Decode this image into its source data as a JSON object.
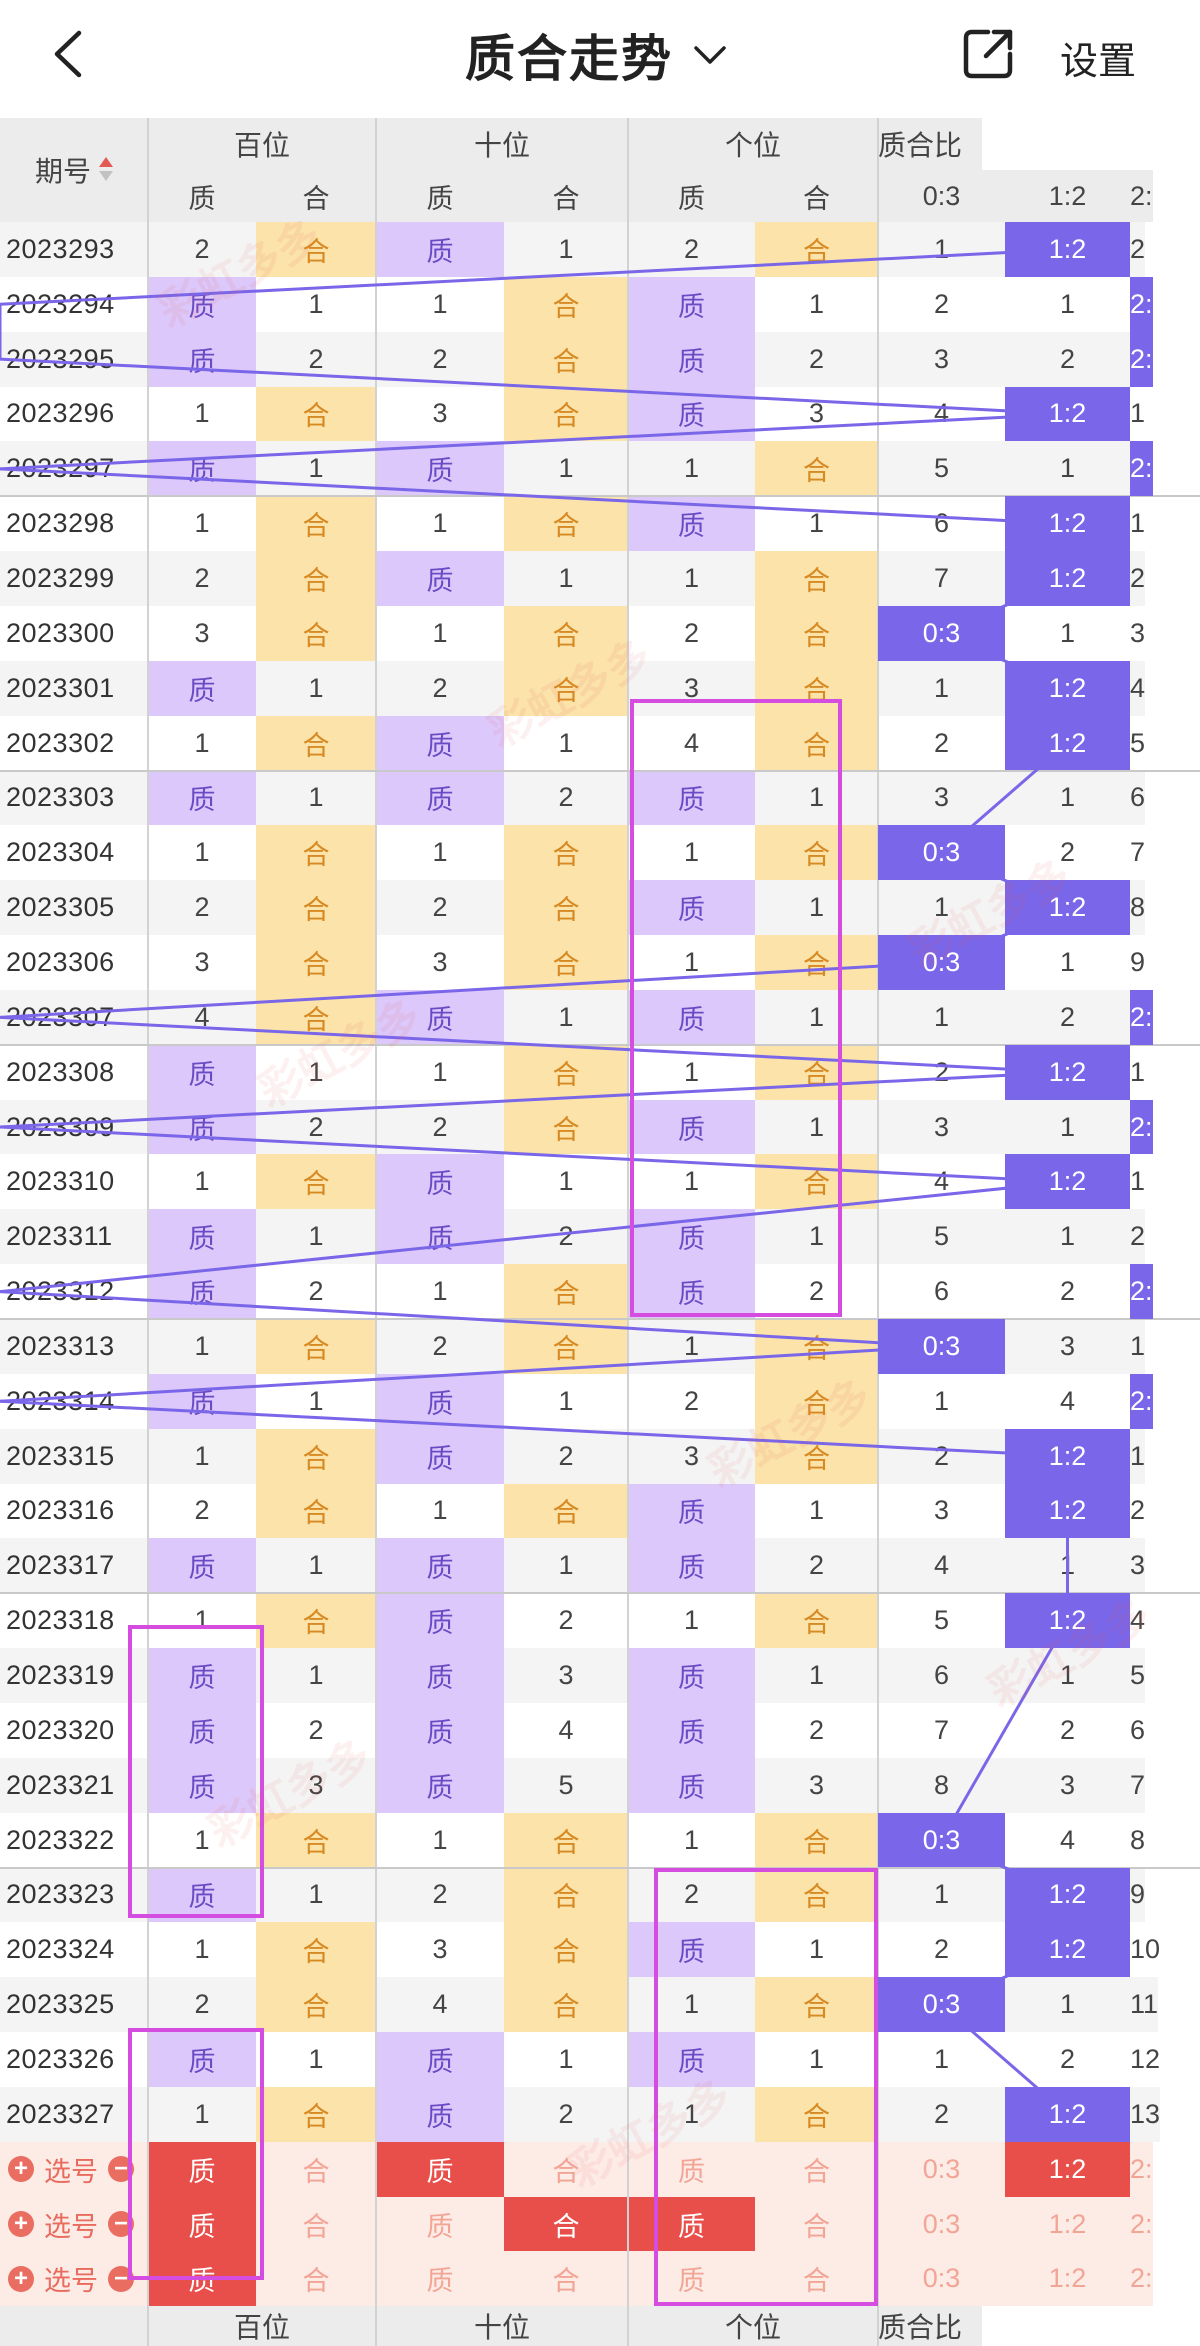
{
  "header": {
    "title": "质合走势",
    "settings_label": "设置"
  },
  "columns": {
    "issue": "期号",
    "groups": [
      "百位",
      "十位",
      "个位",
      "质合比"
    ],
    "sub": [
      "质",
      "合",
      "质",
      "合",
      "质",
      "合",
      "0:3",
      "1:2",
      "2:"
    ]
  },
  "rows": [
    {
      "issue": "2023293",
      "cells": [
        "2",
        "合",
        "质",
        "1",
        "2",
        "合",
        "1",
        "1:2",
        "2"
      ]
    },
    {
      "issue": "2023294",
      "cells": [
        "质",
        "1",
        "1",
        "合",
        "质",
        "1",
        "2",
        "1",
        "2:"
      ]
    },
    {
      "issue": "2023295",
      "cells": [
        "质",
        "2",
        "2",
        "合",
        "质",
        "2",
        "3",
        "2",
        "2:"
      ]
    },
    {
      "issue": "2023296",
      "cells": [
        "1",
        "合",
        "3",
        "合",
        "质",
        "3",
        "4",
        "1:2",
        "1"
      ]
    },
    {
      "issue": "2023297",
      "cells": [
        "质",
        "1",
        "质",
        "1",
        "1",
        "合",
        "5",
        "1",
        "2:"
      ]
    },
    {
      "issue": "2023298",
      "cells": [
        "1",
        "合",
        "1",
        "合",
        "质",
        "1",
        "6",
        "1:2",
        "1"
      ]
    },
    {
      "issue": "2023299",
      "cells": [
        "2",
        "合",
        "质",
        "1",
        "1",
        "合",
        "7",
        "1:2",
        "2"
      ]
    },
    {
      "issue": "2023300",
      "cells": [
        "3",
        "合",
        "1",
        "合",
        "2",
        "合",
        "0:3",
        "1",
        "3"
      ]
    },
    {
      "issue": "2023301",
      "cells": [
        "质",
        "1",
        "2",
        "合",
        "3",
        "合",
        "1",
        "1:2",
        "4"
      ]
    },
    {
      "issue": "2023302",
      "cells": [
        "1",
        "合",
        "质",
        "1",
        "4",
        "合",
        "2",
        "1:2",
        "5"
      ]
    },
    {
      "issue": "2023303",
      "cells": [
        "质",
        "1",
        "质",
        "2",
        "质",
        "1",
        "3",
        "1",
        "6"
      ]
    },
    {
      "issue": "2023304",
      "cells": [
        "1",
        "合",
        "1",
        "合",
        "1",
        "合",
        "0:3",
        "2",
        "7"
      ]
    },
    {
      "issue": "2023305",
      "cells": [
        "2",
        "合",
        "2",
        "合",
        "质",
        "1",
        "1",
        "1:2",
        "8"
      ]
    },
    {
      "issue": "2023306",
      "cells": [
        "3",
        "合",
        "3",
        "合",
        "1",
        "合",
        "0:3",
        "1",
        "9"
      ]
    },
    {
      "issue": "2023307",
      "cells": [
        "4",
        "合",
        "质",
        "1",
        "质",
        "1",
        "1",
        "2",
        "2:"
      ]
    },
    {
      "issue": "2023308",
      "cells": [
        "质",
        "1",
        "1",
        "合",
        "1",
        "合",
        "2",
        "1:2",
        "1"
      ]
    },
    {
      "issue": "2023309",
      "cells": [
        "质",
        "2",
        "2",
        "合",
        "质",
        "1",
        "3",
        "1",
        "2:"
      ]
    },
    {
      "issue": "2023310",
      "cells": [
        "1",
        "合",
        "质",
        "1",
        "1",
        "合",
        "4",
        "1:2",
        "1"
      ]
    },
    {
      "issue": "2023311",
      "cells": [
        "质",
        "1",
        "质",
        "2",
        "质",
        "1",
        "5",
        "1",
        "2"
      ]
    },
    {
      "issue": "2023312",
      "cells": [
        "质",
        "2",
        "1",
        "合",
        "质",
        "2",
        "6",
        "2",
        "2:"
      ]
    },
    {
      "issue": "2023313",
      "cells": [
        "1",
        "合",
        "2",
        "合",
        "1",
        "合",
        "0:3",
        "3",
        "1"
      ]
    },
    {
      "issue": "2023314",
      "cells": [
        "质",
        "1",
        "质",
        "1",
        "2",
        "合",
        "1",
        "4",
        "2:"
      ]
    },
    {
      "issue": "2023315",
      "cells": [
        "1",
        "合",
        "质",
        "2",
        "3",
        "合",
        "2",
        "1:2",
        "1"
      ]
    },
    {
      "issue": "2023316",
      "cells": [
        "2",
        "合",
        "1",
        "合",
        "质",
        "1",
        "3",
        "1:2",
        "2"
      ]
    },
    {
      "issue": "2023317",
      "cells": [
        "质",
        "1",
        "质",
        "1",
        "质",
        "2",
        "4",
        "1",
        "3"
      ]
    },
    {
      "issue": "2023318",
      "cells": [
        "1",
        "合",
        "质",
        "2",
        "1",
        "合",
        "5",
        "1:2",
        "4"
      ]
    },
    {
      "issue": "2023319",
      "cells": [
        "质",
        "1",
        "质",
        "3",
        "质",
        "1",
        "6",
        "1",
        "5"
      ]
    },
    {
      "issue": "2023320",
      "cells": [
        "质",
        "2",
        "质",
        "4",
        "质",
        "2",
        "7",
        "2",
        "6"
      ]
    },
    {
      "issue": "2023321",
      "cells": [
        "质",
        "3",
        "质",
        "5",
        "质",
        "3",
        "8",
        "3",
        "7"
      ]
    },
    {
      "issue": "2023322",
      "cells": [
        "1",
        "合",
        "1",
        "合",
        "1",
        "合",
        "0:3",
        "4",
        "8"
      ]
    },
    {
      "issue": "2023323",
      "cells": [
        "质",
        "1",
        "2",
        "合",
        "2",
        "合",
        "1",
        "1:2",
        "9"
      ]
    },
    {
      "issue": "2023324",
      "cells": [
        "1",
        "合",
        "3",
        "合",
        "质",
        "1",
        "2",
        "1:2",
        "10"
      ]
    },
    {
      "issue": "2023325",
      "cells": [
        "2",
        "合",
        "4",
        "合",
        "1",
        "合",
        "0:3",
        "1",
        "11"
      ]
    },
    {
      "issue": "2023326",
      "cells": [
        "质",
        "1",
        "质",
        "1",
        "质",
        "1",
        "1",
        "2",
        "12"
      ]
    },
    {
      "issue": "2023327",
      "cells": [
        "1",
        "合",
        "质",
        "2",
        "1",
        "合",
        "2",
        "1:2",
        "13"
      ]
    }
  ],
  "selection": {
    "label": "选号",
    "plus": "+",
    "minus": "−",
    "rows": [
      {
        "cells": [
          "质",
          "合",
          "质",
          "合",
          "质",
          "合",
          "0:3",
          "1:2",
          "2:"
        ]
      },
      {
        "cells": [
          "质",
          "合",
          "质",
          "合",
          "质",
          "合",
          "0:3",
          "1:2",
          "2:"
        ]
      },
      {
        "cells": [
          "质",
          "合",
          "质",
          "合",
          "质",
          "合",
          "0:3",
          "1:2",
          "2:"
        ]
      }
    ]
  },
  "footer": [
    "百位",
    "十位",
    "个位",
    "质合比"
  ],
  "watermark_text": "彩虹多多",
  "colors": {
    "zhi": "#dcc8fa",
    "he": "#fbe3a9",
    "ratio": "#7a66e8",
    "selected": "#e84f4a",
    "highlight": "#d44ce0"
  }
}
